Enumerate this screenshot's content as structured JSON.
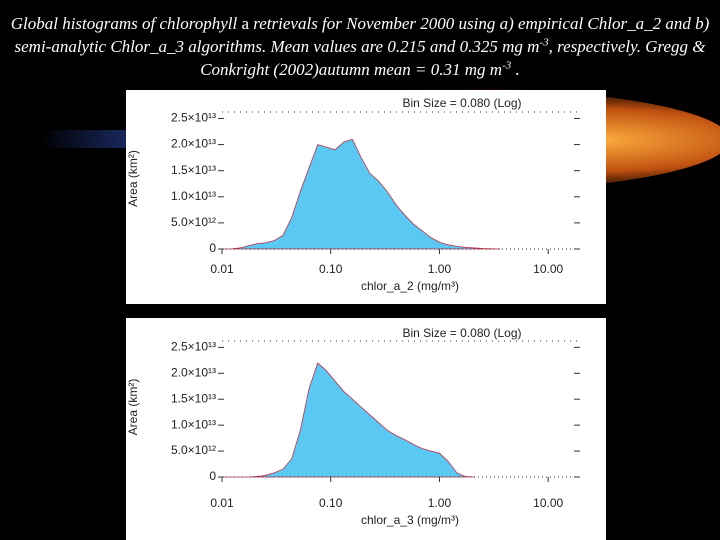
{
  "slide": {
    "caption": [
      "Global histograms of chlorophyll ",
      "a",
      " retrievals for November 2000 using a) empirical Chlor_a_2 and b) semi-analytic Chlor_a_3 algorithms. Mean values are 0.215 and 0.325 mg m",
      "-3",
      ", respectively. Gregg & Conkright (2002)autumn mean = 0.31 mg m",
      "-3",
      " ."
    ]
  },
  "chart_data": [
    {
      "type": "area",
      "title": "Bin Size = 0.080 (Log)",
      "x_label": "chlor_a_2 (mg/m³)",
      "y_label": "Area (km²)",
      "log_x": true,
      "color": "#5ac8f2",
      "edge_color": "#c0304a",
      "xlim": [
        0.01,
        18.8
      ],
      "ylim": [
        0,
        27000000000000.0
      ],
      "xticks": [
        {
          "value": 0.01,
          "label": "0.01"
        },
        {
          "value": 0.1,
          "label": "0.10"
        },
        {
          "value": 1,
          "label": "1.00"
        },
        {
          "value": 10,
          "label": "10.00"
        }
      ],
      "yticks": [
        0,
        {
          "value": 5000000000000.0,
          "label": "5.0×10¹²"
        },
        {
          "value": 10000000000000.0,
          "label": "1.0×10¹³"
        },
        {
          "value": 15000000000000.0,
          "label": "1.5×10¹³"
        },
        {
          "value": 20000000000000.0,
          "label": "2.0×10¹³"
        },
        {
          "value": 25000000000000.0,
          "label": "2.5×10¹³"
        }
      ],
      "x": [
        0.01,
        0.012,
        0.0145,
        0.0174,
        0.0209,
        0.0251,
        0.0302,
        0.0363,
        0.0437,
        0.0525,
        0.0631,
        0.0759,
        0.0912,
        0.1096,
        0.1318,
        0.1585,
        0.1905,
        0.2291,
        0.2754,
        0.3311,
        0.3981,
        0.4786,
        0.5754,
        0.6918,
        0.8318,
        1.0,
        1.2023,
        1.4454,
        1.7378,
        2.0893,
        2.5119,
        3.02,
        3.6308
      ],
      "values": [
        0,
        0,
        200000000000.0,
        600000000000.0,
        1000000000000.0,
        1200000000000.0,
        1600000000000.0,
        2600000000000.0,
        6000000000000.0,
        11000000000000.0,
        15500000000000.0,
        20000000000000.0,
        19500000000000.0,
        19000000000000.0,
        20500000000000.0,
        21000000000000.0,
        17500000000000.0,
        14500000000000.0,
        13000000000000.0,
        11000000000000.0,
        8500000000000.0,
        6500000000000.0,
        4800000000000.0,
        3500000000000.0,
        2200000000000.0,
        1300000000000.0,
        800000000000.0,
        500000000000.0,
        300000000000.0,
        200000000000.0,
        100000000000.0,
        50000000000.0,
        0
      ]
    },
    {
      "type": "area",
      "title": "Bin Size = 0.080 (Log)",
      "x_label": "chlor_a_3 (mg/m³)",
      "y_label": "Area (km²)",
      "log_x": true,
      "color": "#5ac8f2",
      "edge_color": "#c0304a",
      "xlim": [
        0.01,
        18.8
      ],
      "ylim": [
        0,
        27000000000000.0
      ],
      "xticks": [
        {
          "value": 0.01,
          "label": "0.01"
        },
        {
          "value": 0.1,
          "label": "0.10"
        },
        {
          "value": 1,
          "label": "1.00"
        },
        {
          "value": 10,
          "label": "10.00"
        }
      ],
      "yticks": [
        0,
        {
          "value": 5000000000000.0,
          "label": "5.0×10¹²"
        },
        {
          "value": 10000000000000.0,
          "label": "1.0×10¹³"
        },
        {
          "value": 15000000000000.0,
          "label": "1.5×10¹³"
        },
        {
          "value": 20000000000000.0,
          "label": "2.0×10¹³"
        },
        {
          "value": 25000000000000.0,
          "label": "2.5×10¹³"
        }
      ],
      "x": [
        0.01,
        0.012,
        0.0145,
        0.0174,
        0.0209,
        0.0251,
        0.0302,
        0.0363,
        0.0437,
        0.0525,
        0.0631,
        0.0759,
        0.0912,
        0.1096,
        0.1318,
        0.1585,
        0.1905,
        0.2291,
        0.2754,
        0.3311,
        0.3981,
        0.4786,
        0.5754,
        0.6918,
        0.8318,
        1.0,
        1.2023,
        1.4454,
        1.7378,
        2.0893
      ],
      "values": [
        0,
        0,
        0,
        0,
        100000000000.0,
        300000000000.0,
        800000000000.0,
        1500000000000.0,
        3500000000000.0,
        9000000000000.0,
        17000000000000.0,
        22000000000000.0,
        20500000000000.0,
        18500000000000.0,
        16500000000000.0,
        15000000000000.0,
        13500000000000.0,
        12000000000000.0,
        10500000000000.0,
        9000000000000.0,
        8000000000000.0,
        7200000000000.0,
        6300000000000.0,
        5500000000000.0,
        5000000000000.0,
        4600000000000.0,
        3000000000000.0,
        800000000000.0,
        100000000000.0,
        0
      ]
    }
  ]
}
